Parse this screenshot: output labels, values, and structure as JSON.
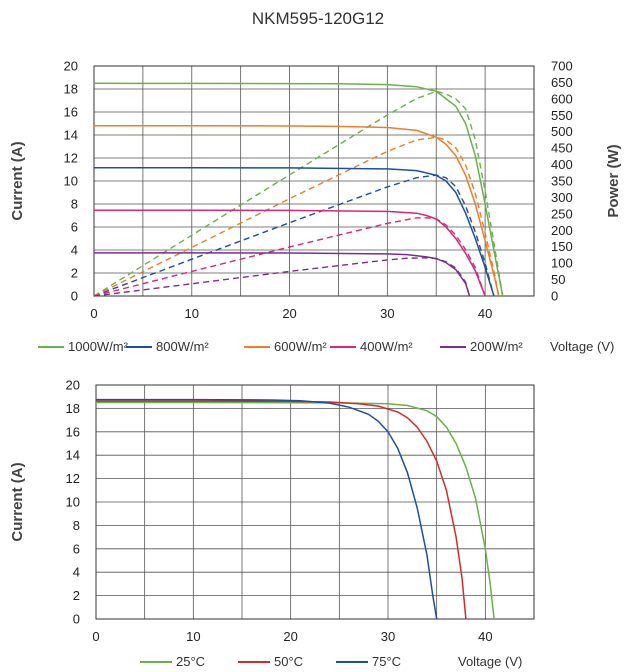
{
  "title": "NKM595-120G12",
  "colors": {
    "grid": "#555555",
    "text": "#333333",
    "series_1000": "#6ab04c",
    "series_800": "#1f4e9c",
    "series_600": "#ee7d2d",
    "series_400": "#d8267a",
    "series_200": "#7b2d8e",
    "series_25c": "#6ab04c",
    "series_50c": "#d42a2a",
    "series_75c": "#1f4e9c"
  },
  "chart_data": [
    {
      "type": "line",
      "title": "NKM595-120G12",
      "xlabel": "Voltage (V)",
      "ylabel": "Current (A)",
      "y2label": "Power (W)",
      "xlim": [
        0,
        45
      ],
      "ylim": [
        0,
        20
      ],
      "y2lim": [
        0,
        700
      ],
      "xticks": [
        0,
        10,
        20,
        30,
        40
      ],
      "yticks": [
        0,
        2,
        4,
        6,
        8,
        10,
        12,
        14,
        16,
        18,
        20
      ],
      "y2ticks": [
        0,
        50,
        100,
        150,
        200,
        250,
        300,
        350,
        400,
        450,
        500,
        550,
        600,
        650,
        700
      ],
      "grid": true,
      "legend_position": "bottom",
      "series": [
        {
          "name": "1000W/m²",
          "color": "#6ab04c",
          "iv": [
            [
              0,
              18.5
            ],
            [
              10,
              18.49
            ],
            [
              20,
              18.47
            ],
            [
              25,
              18.45
            ],
            [
              30,
              18.38
            ],
            [
              33,
              18.2
            ],
            [
              35,
              17.8
            ],
            [
              37,
              16.5
            ],
            [
              38,
              15.0
            ],
            [
              39,
              12.2
            ],
            [
              40,
              8.0
            ],
            [
              41,
              3.5
            ],
            [
              41.8,
              0
            ]
          ],
          "pv": [
            [
              0,
              0
            ],
            [
              10,
              185
            ],
            [
              20,
              369
            ],
            [
              30,
              551
            ],
            [
              33,
              601
            ],
            [
              35,
              623
            ],
            [
              36,
              615
            ],
            [
              37,
              600
            ],
            [
              38,
              570
            ],
            [
              39,
              476
            ],
            [
              40,
              320
            ],
            [
              41,
              144
            ],
            [
              41.8,
              0
            ]
          ]
        },
        {
          "name": "800W/m²",
          "color": "#1f4e9c",
          "iv": [
            [
              0,
              11.15
            ],
            [
              10,
              11.15
            ],
            [
              20,
              11.14
            ],
            [
              30,
              11.05
            ],
            [
              33,
              10.9
            ],
            [
              35,
              10.5
            ],
            [
              36,
              10.0
            ],
            [
              37,
              9.0
            ],
            [
              38,
              7.2
            ],
            [
              39,
              5.0
            ],
            [
              40,
              2.5
            ],
            [
              40.9,
              0
            ]
          ],
          "pv": [
            [
              0,
              0
            ],
            [
              10,
              112
            ],
            [
              20,
              223
            ],
            [
              30,
              332
            ],
            [
              33,
              360
            ],
            [
              35,
              368
            ],
            [
              36,
              360
            ],
            [
              37,
              333
            ],
            [
              38,
              274
            ],
            [
              39,
              195
            ],
            [
              40,
              100
            ],
            [
              40.9,
              0
            ]
          ]
        },
        {
          "name": "600W/m²",
          "color": "#ee7d2d",
          "iv": [
            [
              0,
              14.8
            ],
            [
              10,
              14.8
            ],
            [
              20,
              14.78
            ],
            [
              25,
              14.75
            ],
            [
              30,
              14.65
            ],
            [
              33,
              14.4
            ],
            [
              35,
              13.8
            ],
            [
              36,
              13.2
            ],
            [
              37,
              12.2
            ],
            [
              38,
              10.5
            ],
            [
              39,
              8.0
            ],
            [
              40,
              4.8
            ],
            [
              41,
              1.5
            ],
            [
              41.4,
              0
            ]
          ],
          "pv": [
            [
              0,
              0
            ],
            [
              10,
              148
            ],
            [
              20,
              296
            ],
            [
              30,
              440
            ],
            [
              33,
              475
            ],
            [
              35,
              483
            ],
            [
              36,
              475
            ],
            [
              37,
              451
            ],
            [
              38,
              399
            ],
            [
              39,
              312
            ],
            [
              40,
              192
            ],
            [
              41,
              62
            ],
            [
              41.4,
              0
            ]
          ]
        },
        {
          "name": "400W/m²",
          "color": "#d8267a",
          "iv": [
            [
              0,
              7.45
            ],
            [
              10,
              7.45
            ],
            [
              20,
              7.44
            ],
            [
              30,
              7.36
            ],
            [
              33,
              7.2
            ],
            [
              34,
              7.0
            ],
            [
              35,
              6.7
            ],
            [
              36,
              6.0
            ],
            [
              37,
              5.0
            ],
            [
              38,
              3.7
            ],
            [
              39,
              2.2
            ],
            [
              40,
              0
            ]
          ],
          "pv": [
            [
              0,
              0
            ],
            [
              10,
              75
            ],
            [
              20,
              149
            ],
            [
              30,
              221
            ],
            [
              33,
              238
            ],
            [
              34,
              238
            ],
            [
              35,
              235
            ],
            [
              36,
              216
            ],
            [
              37,
              185
            ],
            [
              38,
              141
            ],
            [
              39,
              86
            ],
            [
              40,
              0
            ]
          ]
        },
        {
          "name": "200W/m²",
          "color": "#7b2d8e",
          "iv": [
            [
              0,
              3.75
            ],
            [
              10,
              3.75
            ],
            [
              20,
              3.74
            ],
            [
              30,
              3.66
            ],
            [
              32,
              3.6
            ],
            [
              34,
              3.4
            ],
            [
              35,
              3.25
            ],
            [
              36,
              2.9
            ],
            [
              37,
              2.3
            ],
            [
              38,
              1.1
            ],
            [
              38.4,
              0
            ]
          ],
          "pv": [
            [
              0,
              0
            ],
            [
              10,
              37
            ],
            [
              20,
              75
            ],
            [
              30,
              110
            ],
            [
              32,
              115
            ],
            [
              34,
              116
            ],
            [
              35,
              114
            ],
            [
              36,
              104
            ],
            [
              37,
              85
            ],
            [
              38,
              42
            ],
            [
              38.4,
              0
            ]
          ]
        }
      ]
    },
    {
      "type": "line",
      "xlabel": "Voltage (V)",
      "ylabel": "Current (A)",
      "xlim": [
        0,
        45
      ],
      "ylim": [
        0,
        20
      ],
      "xticks": [
        0,
        10,
        20,
        30,
        40
      ],
      "yticks": [
        0,
        2,
        4,
        6,
        8,
        10,
        12,
        14,
        16,
        18,
        20
      ],
      "grid": true,
      "legend_position": "bottom",
      "series": [
        {
          "name": "25°C",
          "color": "#6ab04c",
          "iv": [
            [
              0,
              18.5
            ],
            [
              10,
              18.5
            ],
            [
              20,
              18.49
            ],
            [
              25,
              18.47
            ],
            [
              30,
              18.4
            ],
            [
              32,
              18.25
            ],
            [
              34,
              17.8
            ],
            [
              35,
              17.3
            ],
            [
              36,
              16.4
            ],
            [
              37,
              15.0
            ],
            [
              38,
              13.0
            ],
            [
              39,
              10.3
            ],
            [
              40,
              6.0
            ],
            [
              40.5,
              3.0
            ],
            [
              40.9,
              0
            ]
          ]
        },
        {
          "name": "50°C",
          "color": "#d42a2a",
          "iv": [
            [
              0,
              18.62
            ],
            [
              10,
              18.62
            ],
            [
              20,
              18.6
            ],
            [
              24,
              18.55
            ],
            [
              27,
              18.4
            ],
            [
              29,
              18.2
            ],
            [
              31,
              17.7
            ],
            [
              32,
              17.2
            ],
            [
              33,
              16.4
            ],
            [
              34,
              15.2
            ],
            [
              35,
              13.5
            ],
            [
              36,
              11.0
            ],
            [
              37,
              7.0
            ],
            [
              37.6,
              3.5
            ],
            [
              38,
              0
            ]
          ]
        },
        {
          "name": "75°C",
          "color": "#1f4e9c",
          "iv": [
            [
              0,
              18.75
            ],
            [
              10,
              18.75
            ],
            [
              18,
              18.72
            ],
            [
              21,
              18.65
            ],
            [
              24,
              18.45
            ],
            [
              26,
              18.1
            ],
            [
              28,
              17.5
            ],
            [
              29,
              16.9
            ],
            [
              30,
              16.0
            ],
            [
              31,
              14.6
            ],
            [
              32,
              12.5
            ],
            [
              33,
              9.5
            ],
            [
              34,
              5.5
            ],
            [
              34.6,
              2.0
            ],
            [
              35,
              0
            ]
          ]
        }
      ]
    }
  ]
}
